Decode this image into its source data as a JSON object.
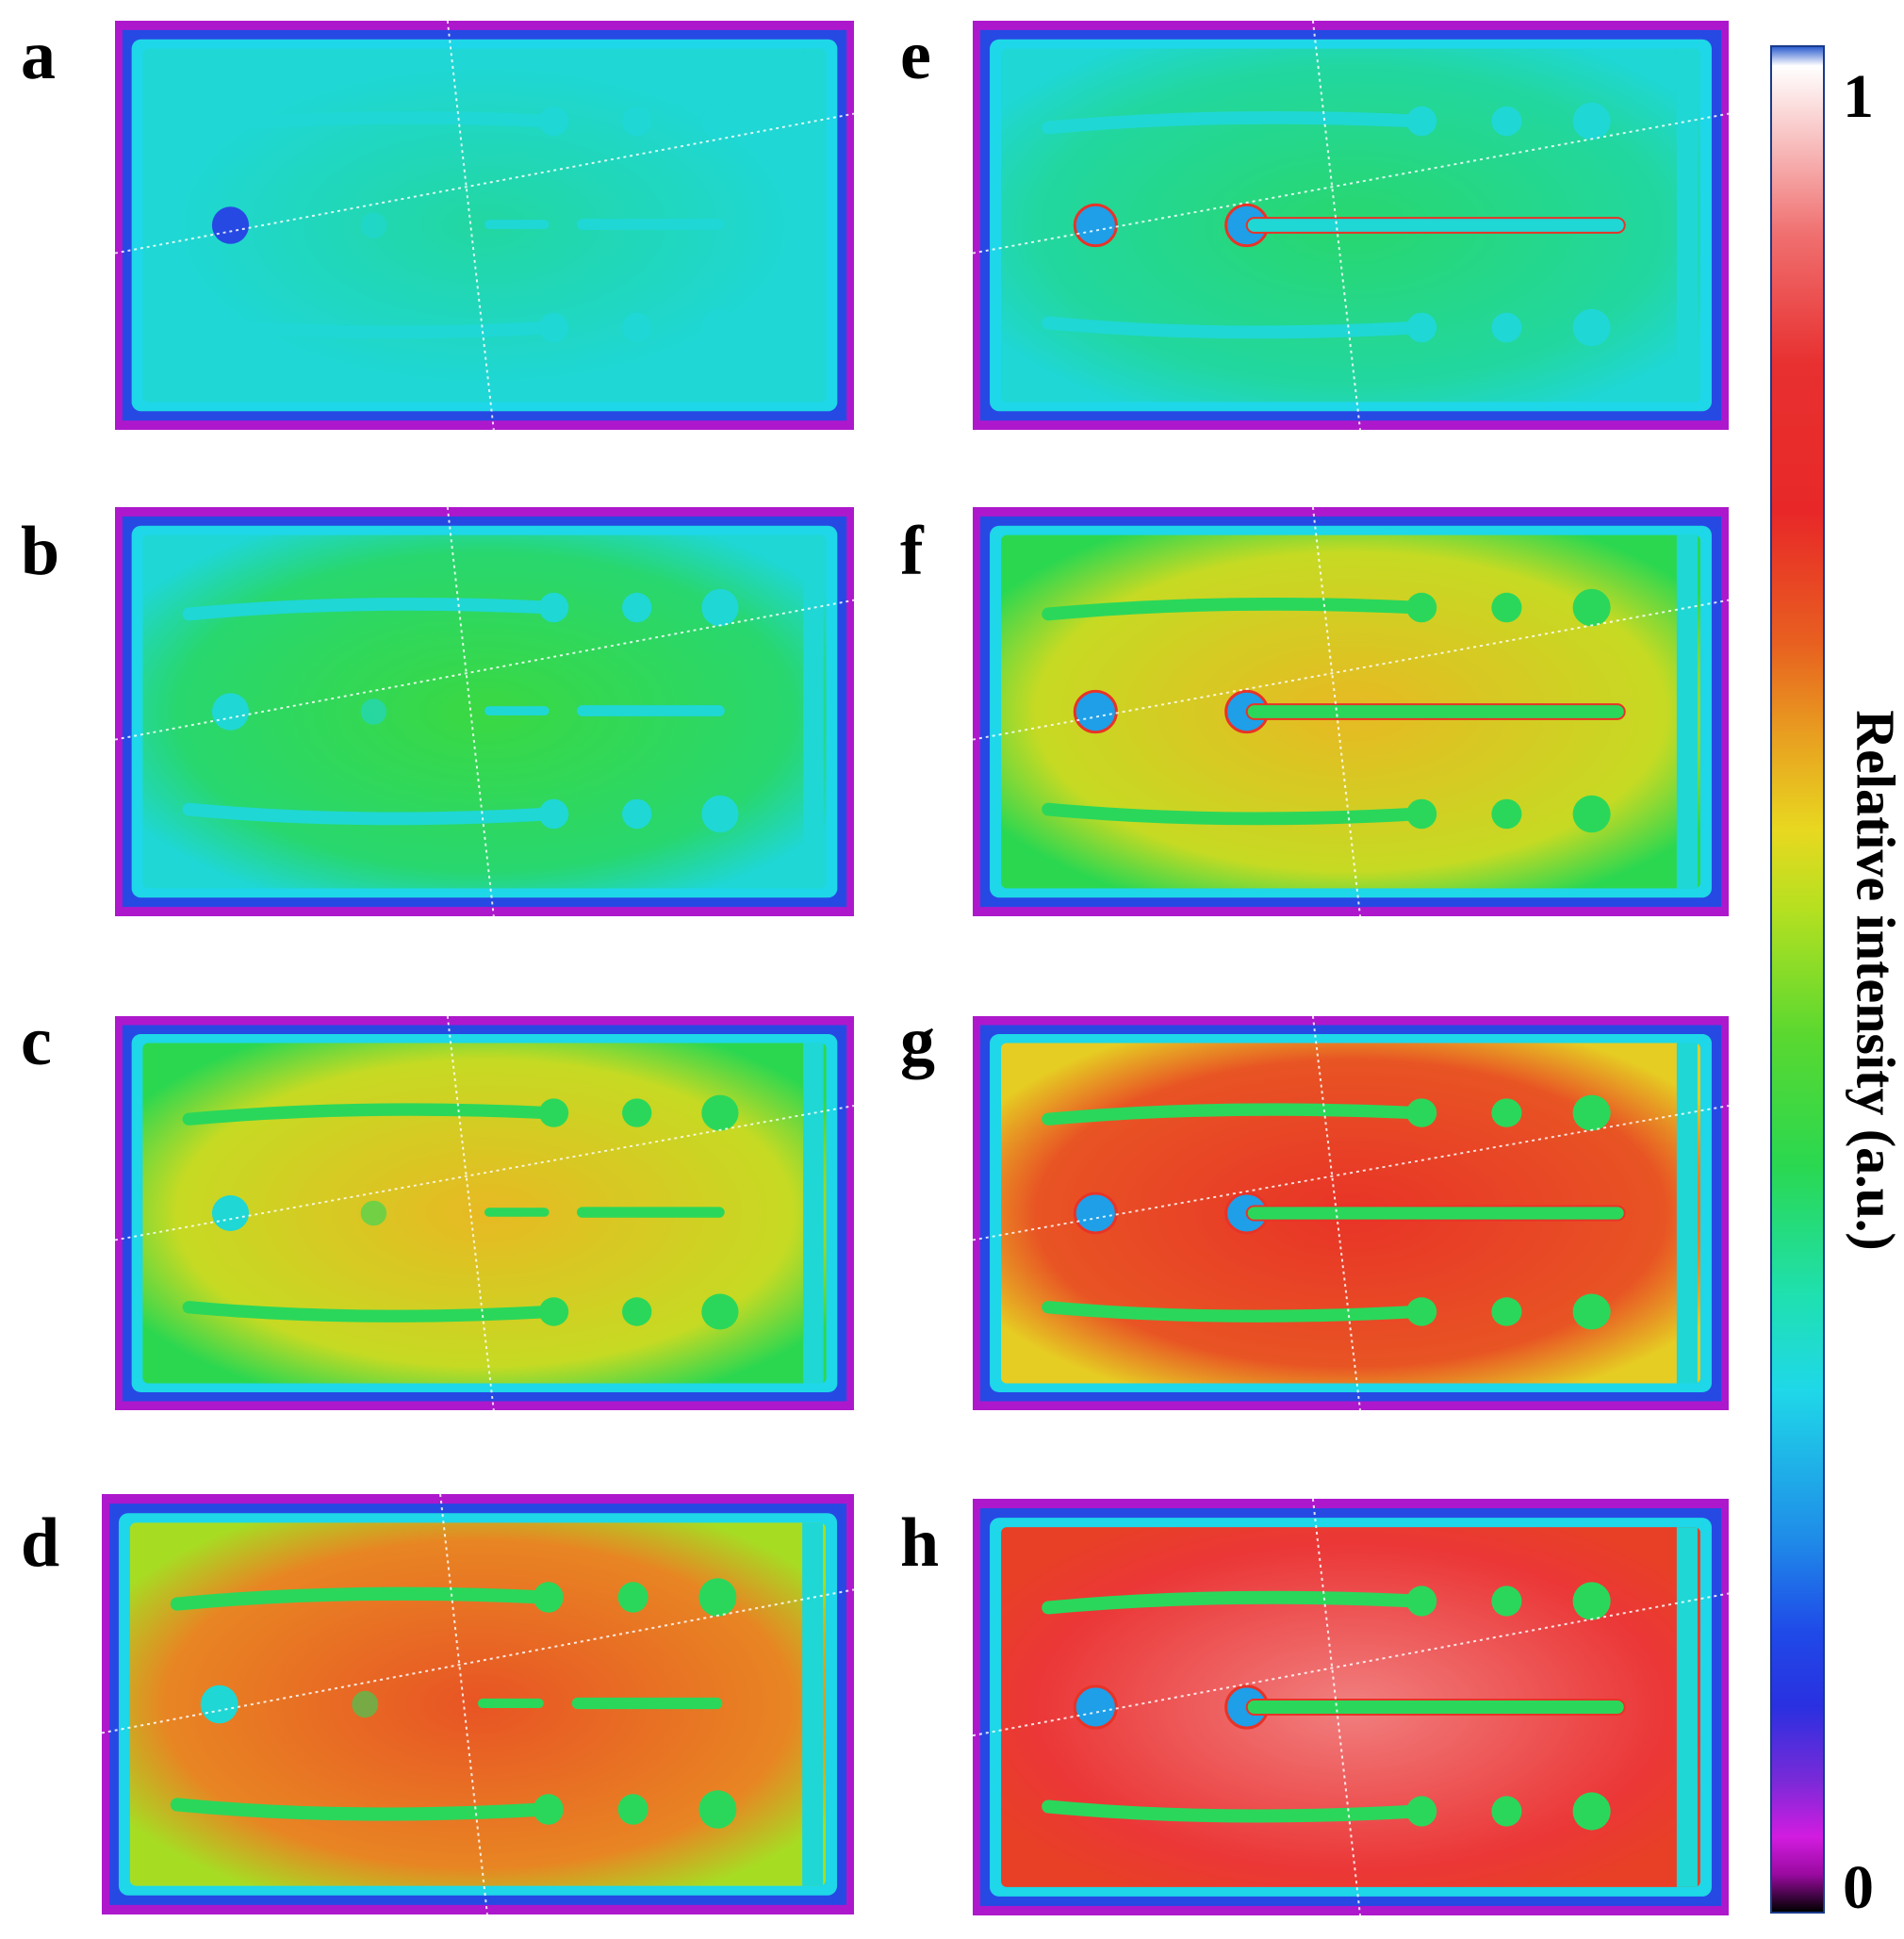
{
  "panels": [
    {
      "letter": "a",
      "level": 0.3
    },
    {
      "letter": "b",
      "level": 0.4
    },
    {
      "letter": "c",
      "level": 0.55
    },
    {
      "letter": "d",
      "level": 0.65
    },
    {
      "letter": "e",
      "level": 0.35
    },
    {
      "letter": "f",
      "level": 0.55
    },
    {
      "letter": "g",
      "level": 0.7
    },
    {
      "letter": "h",
      "level": 0.85
    }
  ],
  "colorbar": {
    "max_label": "1",
    "min_label": "0",
    "title": "Relative intensity (a.u.)"
  },
  "colors": {
    "bar_border": "#1a3a8a"
  }
}
